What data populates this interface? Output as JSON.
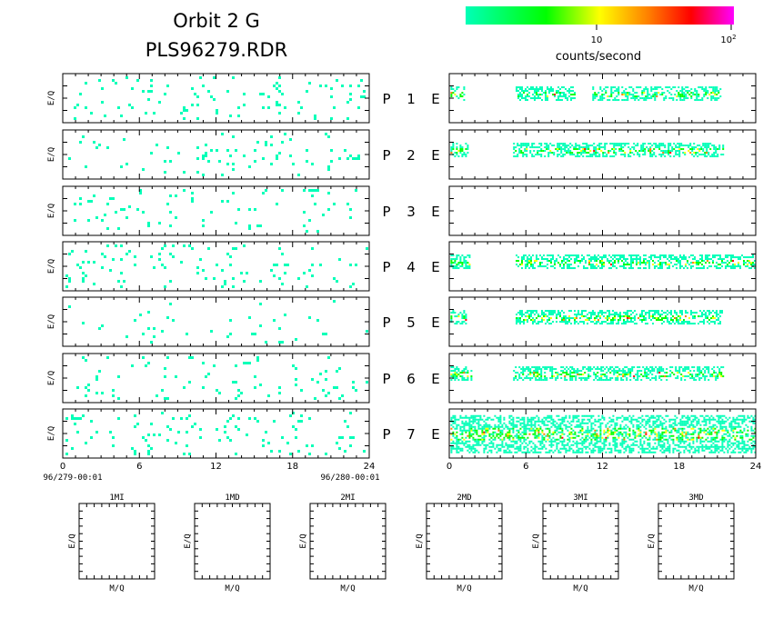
{
  "header": {
    "title": "Orbit  2  G",
    "filename": "PLS96279.RDR"
  },
  "colorbar": {
    "colors": [
      "#00ffb8",
      "#00ff00",
      "#ffff00",
      "#ff8000",
      "#ff0000",
      "#ff00ff"
    ],
    "tick_10": "10",
    "tick_100_base": "10",
    "tick_100_exp": "2",
    "label": "counts/second"
  },
  "axes": {
    "ylabel": "E/Q",
    "xticks": [
      "0",
      "6",
      "12",
      "18",
      "24"
    ],
    "start_label": "96/279-00:01",
    "end_label": "96/280-00:01"
  },
  "panels": {
    "rows": [
      {
        "p": "P",
        "num": "1",
        "e": "E"
      },
      {
        "p": "P",
        "num": "2",
        "e": "E"
      },
      {
        "p": "P",
        "num": "3",
        "e": "E"
      },
      {
        "p": "P",
        "num": "4",
        "e": "E"
      },
      {
        "p": "P",
        "num": "5",
        "e": "E"
      },
      {
        "p": "P",
        "num": "6",
        "e": "E"
      },
      {
        "p": "P",
        "num": "7",
        "e": "E"
      }
    ]
  },
  "small_plots": [
    {
      "title": "1MI",
      "ylabel": "E/Q",
      "xlabel": "M/Q"
    },
    {
      "title": "1MD",
      "ylabel": "E/Q",
      "xlabel": "M/Q"
    },
    {
      "title": "2MI",
      "ylabel": "E/Q",
      "xlabel": "M/Q"
    },
    {
      "title": "2MD",
      "ylabel": "E/Q",
      "xlabel": "M/Q"
    },
    {
      "title": "3MI",
      "ylabel": "E/Q",
      "xlabel": "M/Q"
    },
    {
      "title": "3MD",
      "ylabel": "E/Q",
      "xlabel": "M/Q"
    }
  ],
  "chart_data": {
    "type": "heatmap",
    "x_unit": "hours",
    "xlim": [
      0,
      24
    ],
    "color_scale": "log",
    "color_range_label": [
      "10",
      "10^2"
    ],
    "p_panels": {
      "activity": [
        "sparse",
        "sparse",
        "sparse",
        "sparse",
        "very sparse",
        "sparse",
        "sparse"
      ]
    },
    "e_panels": {
      "activity_bands_hours": [
        [
          [
            0.1,
            1.2
          ],
          [
            5.2,
            9.8
          ],
          [
            11.2,
            21.3
          ]
        ],
        [
          [
            0.1,
            1.5
          ],
          [
            5.0,
            21.5
          ]
        ],
        [],
        [
          [
            0.1,
            1.6
          ],
          [
            5.2,
            24
          ]
        ],
        [
          [
            0.1,
            1.3
          ],
          [
            5.2,
            21.3
          ]
        ],
        [
          [
            0.1,
            1.8
          ],
          [
            5.0,
            21.5
          ]
        ],
        [
          [
            0.1,
            24
          ]
        ]
      ]
    }
  }
}
